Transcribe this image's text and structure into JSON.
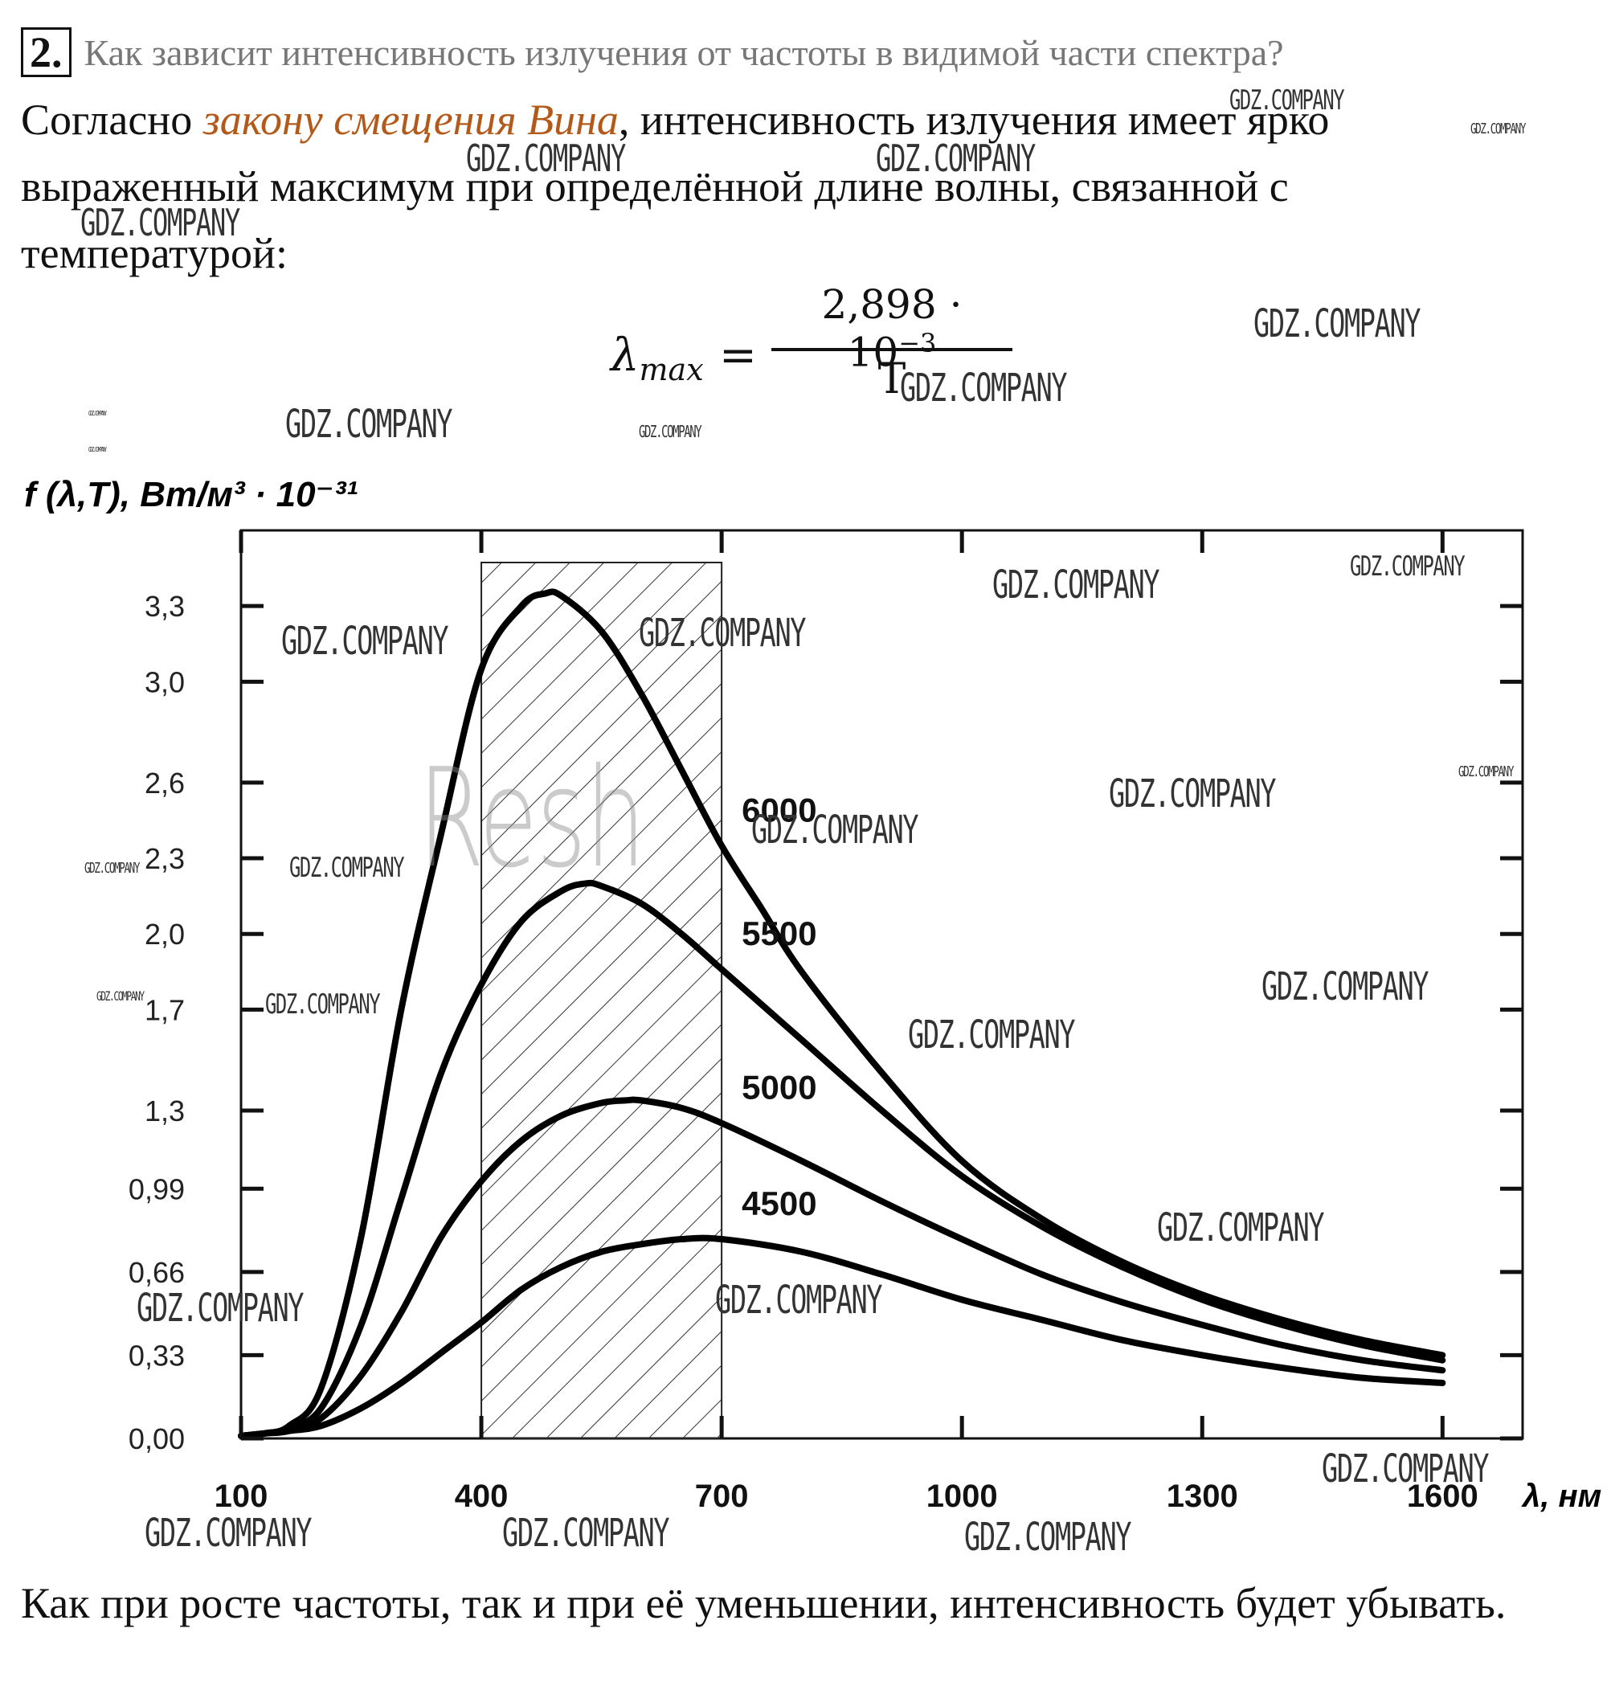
{
  "question": {
    "number": "2.",
    "text": "Как зависит интенсивность излучения от частоты в видимой части спектра?"
  },
  "answer": {
    "part1": "Согласно ",
    "link": "закону смещения Вина",
    "part2": ", интенсивность излучения имеет ярко выраженный максимум при определённой длине волны, связанной с температурой:"
  },
  "formula": {
    "lhs": "λ",
    "lhs_sub": "max",
    "eq": "=",
    "numerator": "2,898 · 10",
    "numerator_exp": "−3",
    "denominator": "T"
  },
  "chart_data": {
    "type": "line",
    "ylabel": "f (λ,T), Вт/м³ · 10⁻³¹",
    "xlabel": "λ, нм",
    "xlim": [
      100,
      1700
    ],
    "ylim": [
      0,
      3.6
    ],
    "xticks": [
      "100",
      "400",
      "700",
      "1000",
      "1300",
      "1600"
    ],
    "yticks": [
      "0,00",
      "0,33",
      "0,66",
      "0,99",
      "1,3",
      "1,7",
      "2,0",
      "2,3",
      "2,6",
      "3,0",
      "3,3"
    ],
    "shaded_range": [
      400,
      700
    ],
    "series": [
      {
        "name": "6000",
        "x": [
          100,
          130,
          160,
          200,
          250,
          300,
          350,
          400,
          450,
          480,
          500,
          550,
          600,
          650,
          700,
          750,
          800,
          900,
          1000,
          1100,
          1200,
          1300,
          1400,
          1500,
          1600
        ],
        "values": [
          0.01,
          0.02,
          0.05,
          0.2,
          0.8,
          1.7,
          2.4,
          3.05,
          3.3,
          3.35,
          3.34,
          3.2,
          2.95,
          2.65,
          2.35,
          2.1,
          1.85,
          1.45,
          1.1,
          0.87,
          0.7,
          0.57,
          0.47,
          0.39,
          0.33
        ]
      },
      {
        "name": "5500",
        "x": [
          100,
          130,
          160,
          200,
          250,
          300,
          350,
          400,
          450,
          500,
          530,
          550,
          600,
          650,
          700,
          800,
          900,
          1000,
          1100,
          1200,
          1300,
          1400,
          1500,
          1600
        ],
        "values": [
          0.01,
          0.02,
          0.04,
          0.12,
          0.45,
          0.95,
          1.45,
          1.8,
          2.05,
          2.17,
          2.2,
          2.19,
          2.12,
          2.0,
          1.86,
          1.58,
          1.3,
          1.04,
          0.84,
          0.68,
          0.55,
          0.45,
          0.37,
          0.31
        ]
      },
      {
        "name": "5000",
        "x": [
          100,
          130,
          160,
          200,
          250,
          300,
          350,
          400,
          450,
          500,
          550,
          580,
          600,
          650,
          700,
          800,
          900,
          1000,
          1100,
          1200,
          1300,
          1400,
          1500,
          1600
        ],
        "values": [
          0.01,
          0.02,
          0.03,
          0.08,
          0.25,
          0.5,
          0.8,
          1.02,
          1.18,
          1.28,
          1.33,
          1.34,
          1.34,
          1.31,
          1.25,
          1.1,
          0.94,
          0.79,
          0.65,
          0.54,
          0.45,
          0.37,
          0.31,
          0.27
        ]
      },
      {
        "name": "4500",
        "x": [
          100,
          130,
          160,
          200,
          250,
          300,
          350,
          400,
          450,
          500,
          550,
          600,
          650,
          700,
          800,
          900,
          1000,
          1100,
          1200,
          1300,
          1400,
          1500,
          1600
        ],
        "values": [
          0.01,
          0.02,
          0.03,
          0.05,
          0.12,
          0.22,
          0.34,
          0.46,
          0.59,
          0.68,
          0.74,
          0.77,
          0.79,
          0.79,
          0.74,
          0.65,
          0.55,
          0.47,
          0.39,
          0.33,
          0.28,
          0.24,
          0.22
        ]
      }
    ]
  },
  "closing": "Как при росте частоты, так и при её уменьшении, интенсивность будет убывать.",
  "watermarks": [
    "GDZ.COMPANY",
    "Resh"
  ]
}
